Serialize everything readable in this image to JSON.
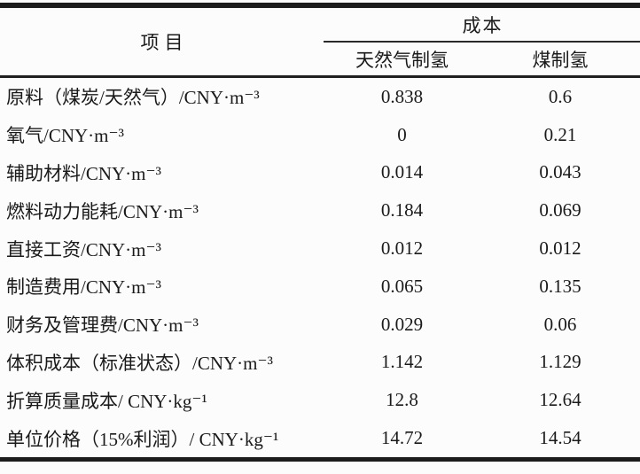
{
  "page": {
    "background_color": "#fcfcfc",
    "text_color": "#1a1a1a",
    "rule_color": "#1c1c1c"
  },
  "table": {
    "item_header": "项目",
    "cost_header": "成本",
    "sub_headers": [
      "天然气制氢",
      "煤制氢"
    ],
    "rows": [
      {
        "label": "原料（煤炭/天然气）/CNY·m⁻³",
        "natural_gas": "0.838",
        "coal": "0.6"
      },
      {
        "label": "氧气/CNY·m⁻³",
        "natural_gas": "0",
        "coal": "0.21"
      },
      {
        "label": "辅助材料/CNY·m⁻³",
        "natural_gas": "0.014",
        "coal": "0.043"
      },
      {
        "label": "燃料动力能耗/CNY·m⁻³",
        "natural_gas": "0.184",
        "coal": "0.069"
      },
      {
        "label": "直接工资/CNY·m⁻³",
        "natural_gas": "0.012",
        "coal": "0.012"
      },
      {
        "label": "制造费用/CNY·m⁻³",
        "natural_gas": "0.065",
        "coal": "0.135"
      },
      {
        "label": "财务及管理费/CNY·m⁻³",
        "natural_gas": "0.029",
        "coal": "0.06"
      },
      {
        "label": "体积成本（标准状态）/CNY·m⁻³",
        "natural_gas": "1.142",
        "coal": "1.129"
      },
      {
        "label": "折算质量成本/ CNY·kg⁻¹",
        "natural_gas": "12.8",
        "coal": "12.64"
      },
      {
        "label": "单位价格（15%利润）/ CNY·kg⁻¹",
        "natural_gas": "14.72",
        "coal": "14.54"
      }
    ]
  }
}
